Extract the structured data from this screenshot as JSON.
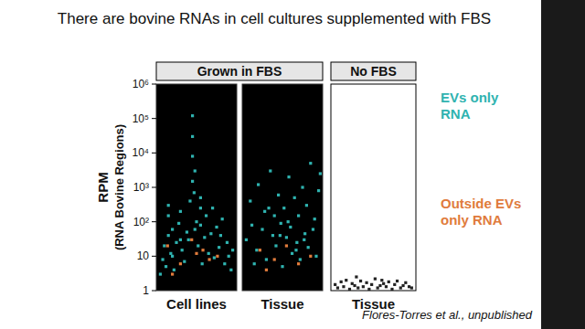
{
  "slide": {
    "title": "There are bovine RNAs in cell cultures supplemented with FBS",
    "header_labels": [
      "Grown in FBS",
      "No FBS"
    ],
    "citation": "Flores-Torres et al., unpublished"
  },
  "chart_data": [
    {
      "type": "scatter",
      "xlabel": "Cell lines",
      "ylabel": [
        "RPM",
        "(RNA Bovine Regions)"
      ],
      "log": "y",
      "grid": false,
      "legend": "right",
      "tick_labels": "y",
      "xlim": [
        0,
        1
      ],
      "ylim": [
        1,
        1000000
      ],
      "yticks": [
        1,
        10,
        {
          "value": 100,
          "label": "10²"
        },
        {
          "value": 1000,
          "label": "10³"
        },
        {
          "value": 10000,
          "label": "10⁴"
        },
        {
          "value": 100000,
          "label": "10⁵"
        },
        {
          "value": 1000000,
          "label": "10⁶"
        }
      ],
      "series": [
        {
          "name": "EVs only RNA",
          "color": "#2fb3b0",
          "marker": "square",
          "x": [
            0.05,
            0.08,
            0.1,
            0.12,
            0.15,
            0.15,
            0.15,
            0.18,
            0.2,
            0.22,
            0.25,
            0.28,
            0.3,
            0.32,
            0.35,
            0.38,
            0.4,
            0.42,
            0.45,
            0.45,
            0.45,
            0.45,
            0.47,
            0.48,
            0.5,
            0.52,
            0.55,
            0.55,
            0.57,
            0.6,
            0.62,
            0.65,
            0.68,
            0.7,
            0.72,
            0.75,
            0.78,
            0.8,
            0.82,
            0.85,
            0.88,
            0.9,
            0.93,
            0.95,
            0.55,
            0.48,
            0.3,
            0.2
          ],
          "values": [
            3,
            8,
            20,
            5,
            40,
            150,
            300,
            12,
            60,
            4,
            25,
            90,
            200,
            15,
            7,
            50,
            30,
            400,
            1500,
            8000,
            30000,
            120000,
            700,
            3000,
            100,
            20,
            80,
            500,
            6,
            35,
            150,
            12,
            45,
            250,
            9,
            70,
            18,
            40,
            120,
            6,
            25,
            10,
            4,
            15,
            250,
            60,
            30,
            10
          ]
        },
        {
          "name": "Outside EVs only RNA",
          "color": "#e07b3c",
          "marker": "square",
          "x": [
            0.14,
            0.3,
            0.44,
            0.5,
            0.58,
            0.66,
            0.76,
            0.2
          ],
          "values": [
            20,
            6,
            30,
            12,
            15,
            8,
            10,
            3
          ]
        }
      ]
    },
    {
      "type": "scatter",
      "xlabel": "Tissue",
      "log": "y",
      "grid": false,
      "tick_labels": false,
      "xlim": [
        0,
        1
      ],
      "ylim": [
        1,
        1000000
      ],
      "series": [
        {
          "color": "#2fb3b0",
          "marker": "square",
          "x": [
            0.05,
            0.1,
            0.12,
            0.18,
            0.2,
            0.25,
            0.28,
            0.3,
            0.35,
            0.38,
            0.4,
            0.42,
            0.45,
            0.48,
            0.5,
            0.52,
            0.55,
            0.58,
            0.6,
            0.62,
            0.65,
            0.68,
            0.7,
            0.72,
            0.75,
            0.78,
            0.8,
            0.82,
            0.85,
            0.88,
            0.9,
            0.92,
            0.95,
            0.15,
            0.33,
            0.47,
            0.57,
            0.67,
            0.77,
            0.97
          ],
          "values": [
            30,
            400,
            80,
            15,
            1200,
            60,
            200,
            8,
            3000,
            40,
            150,
            20,
            600,
            90,
            5,
            250,
            35,
            2000,
            70,
            12,
            500,
            25,
            150,
            8,
            1000,
            45,
            300,
            18,
            5000,
            60,
            120,
            10,
            800,
            6,
            250,
            40,
            100,
            15,
            30,
            2500
          ]
        },
        {
          "color": "#e07b3c",
          "marker": "square",
          "x": [
            0.22,
            0.4,
            0.55,
            0.7,
            0.85,
            0.3
          ],
          "values": [
            15,
            8,
            20,
            6,
            10,
            4
          ]
        }
      ]
    },
    {
      "type": "scatter",
      "xlabel": "Tissue",
      "log": "y",
      "grid": false,
      "tick_labels": false,
      "xlim": [
        0,
        1
      ],
      "ylim": [
        1,
        1000000
      ],
      "series": [
        {
          "color": "#222222",
          "marker": "square",
          "x": [
            0.05,
            0.08,
            0.12,
            0.15,
            0.18,
            0.22,
            0.25,
            0.28,
            0.32,
            0.35,
            0.38,
            0.42,
            0.45,
            0.48,
            0.52,
            0.55,
            0.58,
            0.62,
            0.65,
            0.68,
            0.72,
            0.75,
            0.78,
            0.82,
            0.85,
            0.88,
            0.92,
            0.95,
            0.3,
            0.6
          ],
          "values": [
            1.5,
            1.2,
            1.8,
            1.3,
            2,
            1.1,
            1.6,
            1.4,
            1.2,
            1.9,
            1.3,
            1.7,
            1.1,
            1.5,
            2.2,
            1.2,
            1.4,
            1.6,
            1.3,
            1.8,
            1.1,
            1.5,
            1.9,
            1.2,
            1.4,
            1.7,
            1.3,
            1.2,
            2.5,
            2
          ]
        }
      ]
    }
  ]
}
